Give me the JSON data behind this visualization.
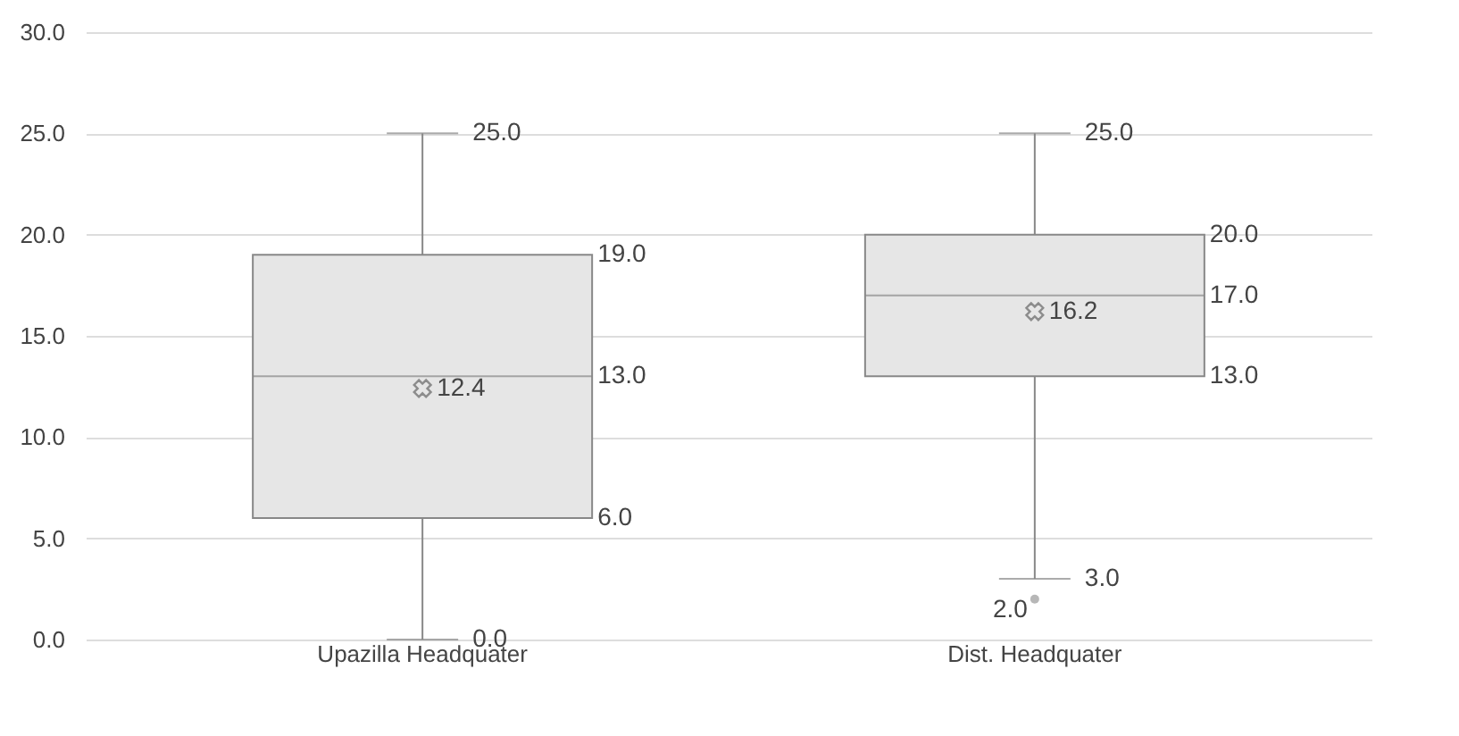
{
  "chart_data": {
    "type": "box",
    "categories": [
      "Upazilla Headquater",
      "Dist. Headquater"
    ],
    "boxes": [
      {
        "low": 0,
        "q1": 6,
        "median": 13,
        "q3": 19,
        "high": 25,
        "mean": 12.4
      },
      {
        "low": 3,
        "q1": 13,
        "median": 17,
        "q3": 20,
        "high": 25,
        "mean": 16.2,
        "outliers": [
          2
        ]
      }
    ],
    "color": "#e6e6e6",
    "ylim": [
      0,
      30
    ],
    "yticks": [
      {
        "value": 0,
        "label": "0.0"
      },
      {
        "value": 5,
        "label": "5.0"
      },
      {
        "value": 10,
        "label": "10.0"
      },
      {
        "value": 15,
        "label": "15.0"
      },
      {
        "value": 20,
        "label": "20.0"
      },
      {
        "value": 25,
        "label": "25.0"
      },
      {
        "value": 30,
        "label": "30.0"
      }
    ],
    "grid": "y",
    "annotations": [
      {
        "text": "25.0",
        "x": "Upazilla Headquater",
        "y": 25
      },
      "19.0",
      "13.0",
      "12.4",
      "6.0",
      {
        "text": "0.0",
        "x": "Upazilla Headquater",
        "y": 0
      },
      {
        "text": "25.0",
        "x": "Dist. Headquater",
        "y": 25
      },
      "20.0",
      "17.0",
      "16.2",
      "13.0",
      {
        "text": "3.0",
        "x": "Dist. Headquater",
        "y": 3
      },
      "2.0"
    ]
  }
}
